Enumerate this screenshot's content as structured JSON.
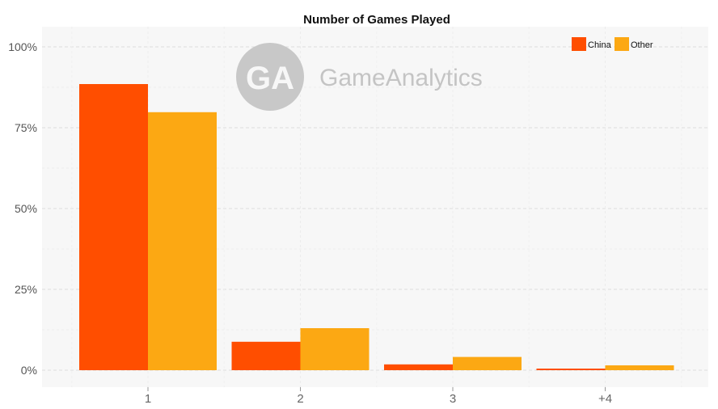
{
  "watermark": {
    "monogram": "GA",
    "brand": "GameAnalytics"
  },
  "chart_data": {
    "type": "bar",
    "title": "Number of Games Played",
    "xlabel": "",
    "ylabel": "",
    "categories": [
      "1",
      "2",
      "3",
      "+4"
    ],
    "series": [
      {
        "name": "China",
        "color": "#ff4e00",
        "values": [
          88.5,
          8.8,
          1.8,
          0.5
        ]
      },
      {
        "name": "Other",
        "color": "#fca813",
        "values": [
          79.8,
          13.0,
          4.1,
          1.5
        ]
      }
    ],
    "ylim": [
      0,
      100
    ],
    "yticks": [
      0,
      25,
      50,
      75,
      100
    ],
    "ytick_labels": [
      "0%",
      "25%",
      "50%",
      "75%",
      "100%"
    ],
    "grid": true,
    "legend_position": "top-right",
    "colors": {
      "panel_background": "#f7f7f7",
      "grid": "#dcdcdc"
    }
  }
}
